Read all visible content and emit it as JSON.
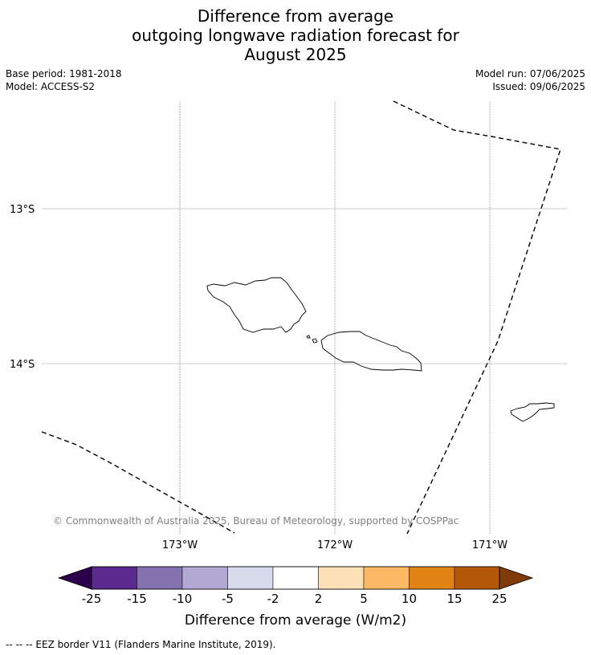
{
  "title": {
    "line1": "Difference from average",
    "line2": "outgoing longwave radiation forecast for",
    "line3": "August 2025"
  },
  "meta": {
    "base_period": "Base period: 1981-2018",
    "model": "Model: ACCESS-S2",
    "model_run": "Model run: 07/06/2025",
    "issued": "Issued: 09/06/2025"
  },
  "map": {
    "lat_labels": [
      "13°S",
      "14°S"
    ],
    "lon_labels": [
      "173°W",
      "172°W",
      "171°W"
    ],
    "copyright": "© Commonwealth of Australia 2025, Bureau of Meteorology, supported by COSPPac"
  },
  "colorbar": {
    "label": "Difference from average (W/m2)",
    "ticks": [
      "-25",
      "-15",
      "-10",
      "-5",
      "-2",
      "2",
      "5",
      "10",
      "15",
      "25"
    ],
    "colors": [
      "#2d004b",
      "#5b2a8f",
      "#8372ad",
      "#b1a9d3",
      "#d8dbeb",
      "#ffffff",
      "#fee0b6",
      "#fdb863",
      "#e08214",
      "#b35806",
      "#7f3b08"
    ]
  },
  "footnote": "--  --  -- EEZ border V11 (Flanders Marine Institute, 2019)."
}
